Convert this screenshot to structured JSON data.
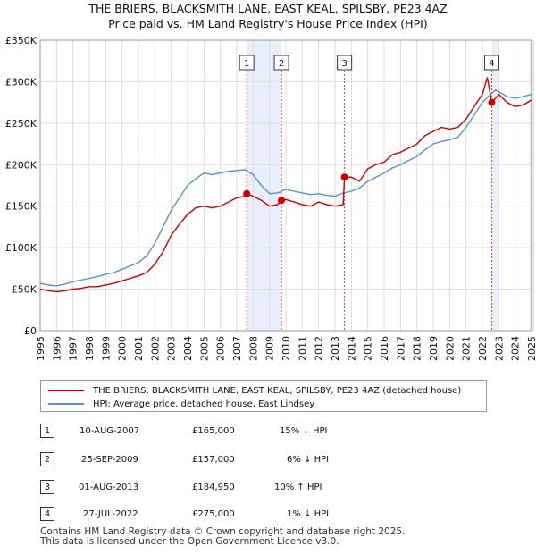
{
  "chart_data": {
    "type": "line",
    "title": "THE BRIERS, BLACKSMITH LANE, EAST KEAL, SPILSBY, PE23 4AZ",
    "subtitle": "Price paid vs. HM Land Registry's House Price Index (HPI)",
    "xlim": [
      1995,
      2025
    ],
    "ylim": [
      0,
      350000
    ],
    "y_ticks": [
      0,
      50000,
      100000,
      150000,
      200000,
      250000,
      300000,
      350000
    ],
    "y_tick_labels": [
      "£0",
      "£50K",
      "£100K",
      "£150K",
      "£200K",
      "£250K",
      "£300K",
      "£350K"
    ],
    "x_tick_labels": [
      "1995",
      "1996",
      "1997",
      "1998",
      "1999",
      "2000",
      "2001",
      "2002",
      "2003",
      "2004",
      "2005",
      "2006",
      "2007",
      "2008",
      "2009",
      "2010",
      "2011",
      "2012",
      "2013",
      "2014",
      "2015",
      "2016",
      "2017",
      "2018",
      "2019",
      "2020",
      "2021",
      "2022",
      "2023",
      "2024",
      "2025"
    ],
    "grid": true,
    "colors": {
      "property": "#cc0000",
      "hpi": "#5b8fd4",
      "shade": "#e8eefa",
      "vline": "#dd3333"
    },
    "series": [
      {
        "name": "THE BRIERS, BLACKSMITH LANE, EAST KEAL, SPILSBY, PE23 4AZ (detached house)",
        "x": [
          1995.0,
          1995.5,
          1996.0,
          1996.5,
          1997.0,
          1997.5,
          1998.0,
          1998.5,
          1999.0,
          1999.5,
          2000.0,
          2000.5,
          2001.0,
          2001.5,
          2002.0,
          2002.5,
          2003.0,
          2003.5,
          2004.0,
          2004.5,
          2005.0,
          2005.5,
          2006.0,
          2006.5,
          2007.0,
          2007.5,
          2007.61,
          2008.0,
          2008.5,
          2009.0,
          2009.5,
          2009.73,
          2010.0,
          2010.5,
          2011.0,
          2011.5,
          2012.0,
          2012.5,
          2013.0,
          2013.5,
          2013.58,
          2014.0,
          2014.5,
          2015.0,
          2015.5,
          2016.0,
          2016.5,
          2017.0,
          2017.5,
          2018.0,
          2018.5,
          2019.0,
          2019.5,
          2020.0,
          2020.5,
          2021.0,
          2021.5,
          2022.0,
          2022.3,
          2022.57,
          2022.8,
          2023.0,
          2023.5,
          2024.0,
          2024.5,
          2025.0
        ],
        "values": [
          50000,
          48000,
          47000,
          48000,
          50000,
          51000,
          53000,
          53000,
          55000,
          57000,
          60000,
          63000,
          66000,
          70000,
          80000,
          95000,
          115000,
          128000,
          140000,
          148000,
          150000,
          148000,
          150000,
          155000,
          160000,
          162000,
          165000,
          162000,
          157000,
          150000,
          152000,
          157000,
          158000,
          155000,
          152000,
          150000,
          155000,
          152000,
          150000,
          152000,
          184950,
          185000,
          180000,
          195000,
          200000,
          203000,
          212000,
          215000,
          220000,
          225000,
          235000,
          240000,
          245000,
          243000,
          245000,
          255000,
          270000,
          285000,
          305000,
          275000,
          280000,
          285000,
          275000,
          270000,
          272000,
          278000
        ]
      },
      {
        "name": "HPI: Average price, detached house, East Lindsey",
        "x": [
          1995.0,
          1995.5,
          1996.0,
          1996.5,
          1997.0,
          1997.5,
          1998.0,
          1998.5,
          1999.0,
          1999.5,
          2000.0,
          2000.5,
          2001.0,
          2001.5,
          2002.0,
          2002.5,
          2003.0,
          2003.5,
          2004.0,
          2004.5,
          2005.0,
          2005.5,
          2006.0,
          2006.5,
          2007.0,
          2007.5,
          2008.0,
          2008.5,
          2009.0,
          2009.5,
          2010.0,
          2010.5,
          2011.0,
          2011.5,
          2012.0,
          2012.5,
          2013.0,
          2013.5,
          2014.0,
          2014.5,
          2015.0,
          2015.5,
          2016.0,
          2016.5,
          2017.0,
          2017.5,
          2018.0,
          2018.5,
          2019.0,
          2019.5,
          2020.0,
          2020.5,
          2021.0,
          2021.5,
          2022.0,
          2022.5,
          2022.8,
          2023.0,
          2023.5,
          2024.0,
          2024.5,
          2025.0
        ],
        "values": [
          57000,
          55000,
          54000,
          56000,
          59000,
          61000,
          63000,
          65000,
          68000,
          70000,
          74000,
          78000,
          82000,
          90000,
          105000,
          125000,
          145000,
          160000,
          175000,
          183000,
          190000,
          188000,
          190000,
          192000,
          193000,
          194000,
          188000,
          175000,
          165000,
          166000,
          170000,
          168000,
          166000,
          164000,
          165000,
          163000,
          162000,
          166000,
          168000,
          172000,
          180000,
          185000,
          190000,
          196000,
          200000,
          205000,
          210000,
          218000,
          225000,
          228000,
          230000,
          233000,
          245000,
          260000,
          275000,
          285000,
          290000,
          288000,
          282000,
          280000,
          282000,
          285000
        ]
      }
    ],
    "markers": [
      {
        "id": "1",
        "x": 2007.61,
        "y": 165000
      },
      {
        "id": "2",
        "x": 2009.73,
        "y": 157000
      },
      {
        "id": "3",
        "x": 2013.58,
        "y": 184950
      },
      {
        "id": "4",
        "x": 2022.57,
        "y": 275000
      }
    ],
    "shaded_ranges": [
      [
        2007.61,
        2009.73
      ],
      [
        2022.57,
        2022.57
      ]
    ]
  },
  "legend": {
    "property_label": "THE BRIERS, BLACKSMITH LANE, EAST KEAL, SPILSBY, PE23 4AZ (detached house)",
    "hpi_label": "HPI: Average price, detached house, East Lindsey"
  },
  "transactions": [
    {
      "id": "1",
      "date": "10-AUG-2007",
      "price": "£165,000",
      "hpi": "15% ↓ HPI"
    },
    {
      "id": "2",
      "date": "25-SEP-2009",
      "price": "£157,000",
      "hpi": "6% ↓ HPI"
    },
    {
      "id": "3",
      "date": "01-AUG-2013",
      "price": "£184,950",
      "hpi": "10% ↑ HPI"
    },
    {
      "id": "4",
      "date": "27-JUL-2022",
      "price": "£275,000",
      "hpi": "1% ↓ HPI"
    }
  ],
  "footer": {
    "line1": "Contains HM Land Registry data © Crown copyright and database right 2025.",
    "line2": "This data is licensed under the Open Government Licence v3.0."
  }
}
